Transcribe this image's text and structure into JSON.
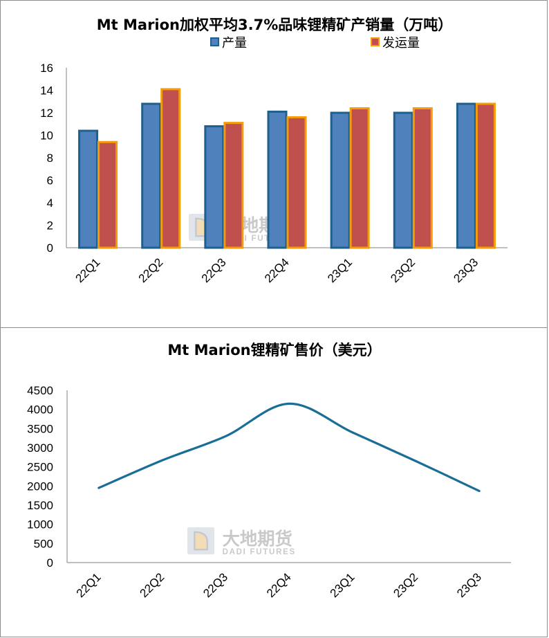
{
  "watermark": {
    "cn": "大地期货",
    "en": "DADI FUTURES"
  },
  "chart_data": [
    {
      "type": "bar",
      "title": "Mt Marion加权平均3.7%品味锂精矿产销量（万吨）",
      "categories": [
        "22Q1",
        "22Q2",
        "22Q3",
        "22Q4",
        "23Q1",
        "23Q2",
        "23Q3"
      ],
      "series": [
        {
          "name": "产量",
          "values": [
            10.4,
            12.8,
            10.8,
            12.1,
            12.0,
            12.0,
            12.8
          ],
          "fill": "#4f81bd",
          "stroke": "#1f5f8b"
        },
        {
          "name": "发运量",
          "values": [
            9.4,
            14.1,
            11.1,
            11.6,
            12.4,
            12.4,
            12.8
          ],
          "fill": "#c0504d",
          "stroke": "#f59c0a"
        }
      ],
      "ylim": [
        0,
        16
      ],
      "yticks": [
        "0",
        "2",
        "4",
        "6",
        "8",
        "10",
        "12",
        "14",
        "16"
      ],
      "legend": "top-center",
      "grid": false
    },
    {
      "type": "line",
      "title": "Mt Marion锂精矿售价（美元）",
      "categories": [
        "22Q1",
        "22Q2",
        "22Q3",
        "22Q4",
        "23Q1",
        "23Q2",
        "23Q3"
      ],
      "series": [
        {
          "values": [
            1950,
            2670,
            3300,
            4150,
            3400,
            2650,
            1870
          ],
          "color": "#1a6e96"
        }
      ],
      "ylim": [
        0,
        4500
      ],
      "yticks": [
        "0",
        "500",
        "1000",
        "1500",
        "2000",
        "2500",
        "3000",
        "3500",
        "4000",
        "4500"
      ],
      "legend": "none",
      "grid": false
    }
  ]
}
